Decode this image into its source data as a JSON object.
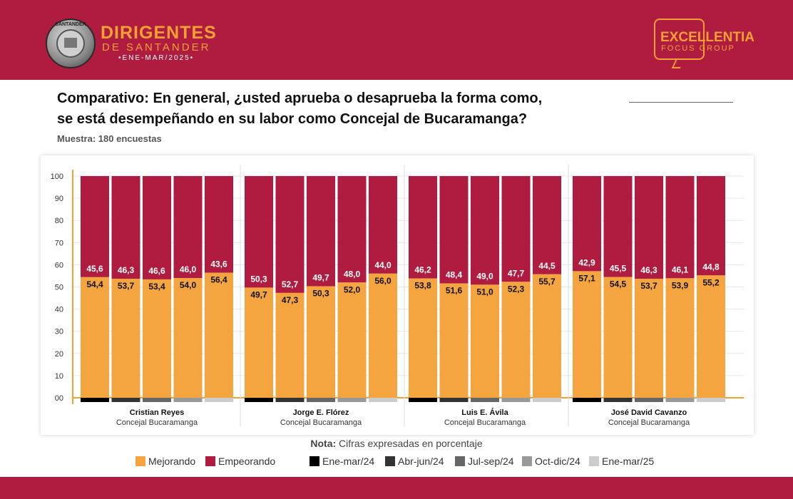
{
  "header": {
    "brand_title": "DIRIGENTES",
    "brand_sub": "DE SANTANDER",
    "brand_date": "•ENE-MAR/2025•",
    "seal_text": "SANTANDER",
    "logo_line1": "EXCELLENTIA",
    "logo_line2": "FOCUS GROUP"
  },
  "question": {
    "line1": "Comparativo: En general, ¿usted aprueba o desaprueba la forma como,",
    "line2": "se está desempeñando en su labor como Concejal de Bucaramanga?",
    "sample": "Muestra: 180 encuestas"
  },
  "nota": {
    "label": "Nota:",
    "text": "Cifras expresadas en porcentaje"
  },
  "legend": {
    "mejorando": "Mejorando",
    "empeorando": "Empeorando",
    "periods": [
      "Ene-mar/24",
      "Abr-jun/24",
      "Jul-sep/24",
      "Oct-dic/24",
      "Ene-mar/25"
    ]
  },
  "colors": {
    "header": "#b01c3f",
    "mejorando": "#f4a540",
    "empeorando": "#b01c3f",
    "periods": [
      "#000000",
      "#333333",
      "#666666",
      "#999999",
      "#cccccc"
    ]
  },
  "chart_data": {
    "type": "bar",
    "stacked": true,
    "ylim": [
      0,
      100
    ],
    "yticks": [
      "00",
      "10",
      "20",
      "30",
      "40",
      "50",
      "60",
      "70",
      "80",
      "90",
      "100"
    ],
    "grid": true,
    "periods": [
      "Ene-mar/24",
      "Abr-jun/24",
      "Jul-sep/24",
      "Oct-dic/24",
      "Ene-mar/25"
    ],
    "groups": [
      {
        "name": "Cristian Reyes",
        "sub": "Concejal Bucaramanga",
        "mejorando": [
          "54,4",
          "53,7",
          "53,4",
          "54,0",
          "56,4"
        ],
        "empeorando": [
          "45,6",
          "46,3",
          "46,6",
          "46,0",
          "43,6"
        ]
      },
      {
        "name": "Jorge E. Flórez",
        "sub": "Concejal Bucaramanga",
        "mejorando": [
          "49,7",
          "47,3",
          "50,3",
          "52,0",
          "56,0"
        ],
        "empeorando": [
          "50,3",
          "52,7",
          "49,7",
          "48,0",
          "44,0"
        ]
      },
      {
        "name": "Luis E. Ávila",
        "sub": "Concejal Bucaramanga",
        "mejorando": [
          "53,8",
          "51,6",
          "51,0",
          "52,3",
          "55,7"
        ],
        "empeorando": [
          "46,2",
          "48,4",
          "49,0",
          "47,7",
          "44,5"
        ]
      },
      {
        "name": "José David Cavanzo",
        "sub": "Concejal Bucaramanga",
        "mejorando": [
          "57,1",
          "54,5",
          "53,7",
          "53,9",
          "55,2"
        ],
        "empeorando": [
          "42,9",
          "45,5",
          "46,3",
          "46,1",
          "44,8"
        ]
      }
    ]
  }
}
